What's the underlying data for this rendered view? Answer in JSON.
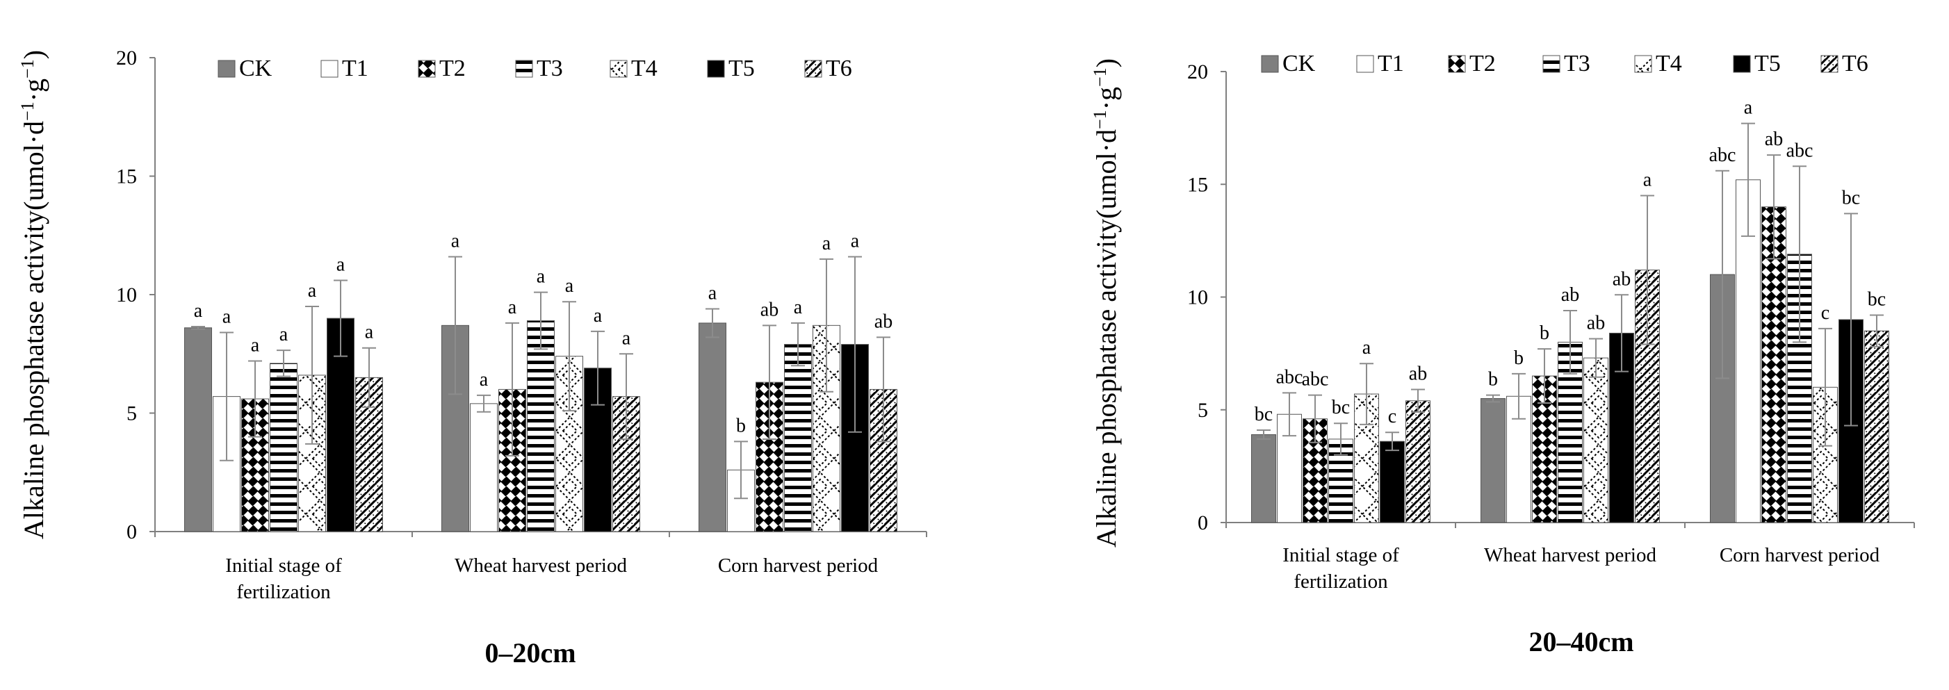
{
  "figure": {
    "series_names": [
      "CK",
      "T1",
      "T2",
      "T3",
      "T4",
      "T5",
      "T6"
    ],
    "series_styles": [
      {
        "fill": "#7f7f7f",
        "pattern": "solid"
      },
      {
        "fill": "#ffffff",
        "pattern": "none"
      },
      {
        "fill": "#ffffff",
        "pattern": "diag-checker"
      },
      {
        "fill": "#ffffff",
        "pattern": "horizontal"
      },
      {
        "fill": "#ffffff",
        "pattern": "diamond-dots"
      },
      {
        "fill": "#000000",
        "pattern": "solid"
      },
      {
        "fill": "#ffffff",
        "pattern": "diag-weave"
      }
    ]
  },
  "chart_data": [
    {
      "type": "bar",
      "title": "0–20cm",
      "ylabel": "Alkaline phosphatase activity(umol·d",
      "ylabel_sup1": "−1",
      "ylabel_mid": "·g",
      "ylabel_sup2": "−1",
      "ylabel_end": ")",
      "ylim": [
        0,
        20
      ],
      "yticks": [
        0,
        5,
        10,
        15,
        20
      ],
      "categories": [
        [
          "Initial stage of",
          "fertilization"
        ],
        [
          "Wheat harvest period"
        ],
        [
          "Corn harvest period"
        ]
      ],
      "legend": "top",
      "series": [
        {
          "name": "CK",
          "values": [
            8.6,
            8.7,
            8.8
          ],
          "errors": [
            0.05,
            2.9,
            0.6
          ],
          "letters": [
            "a",
            "a",
            "a"
          ]
        },
        {
          "name": "T1",
          "values": [
            5.7,
            5.4,
            2.6
          ],
          "errors": [
            2.7,
            0.35,
            1.2
          ],
          "letters": [
            "a",
            "a",
            "b"
          ]
        },
        {
          "name": "T2",
          "values": [
            5.6,
            6.0,
            6.3
          ],
          "errors": [
            1.6,
            2.8,
            2.4
          ],
          "letters": [
            "a",
            "a",
            "ab"
          ]
        },
        {
          "name": "T3",
          "values": [
            7.1,
            8.9,
            7.9
          ],
          "errors": [
            0.55,
            1.2,
            0.9
          ],
          "letters": [
            "a",
            "a",
            "a"
          ]
        },
        {
          "name": "T4",
          "values": [
            6.6,
            7.4,
            8.7
          ],
          "errors": [
            2.9,
            2.3,
            2.8
          ],
          "letters": [
            "a",
            "a",
            "a"
          ]
        },
        {
          "name": "T5",
          "values": [
            9.0,
            6.9,
            7.9
          ],
          "errors": [
            1.6,
            1.55,
            3.7
          ],
          "letters": [
            "a",
            "a",
            "a"
          ]
        },
        {
          "name": "T6",
          "values": [
            6.5,
            5.7,
            6.0
          ],
          "errors": [
            1.25,
            1.8,
            2.2
          ],
          "letters": [
            "a",
            "a",
            "ab"
          ]
        }
      ]
    },
    {
      "type": "bar",
      "title": "20–40cm",
      "ylabel": "Alkaline phosphatase activity(umol·d",
      "ylabel_sup1": "−1",
      "ylabel_mid": "·g",
      "ylabel_sup2": "−1",
      "ylabel_end": ")",
      "ylim": [
        0,
        20
      ],
      "yticks": [
        0,
        5,
        10,
        15,
        20
      ],
      "categories": [
        [
          "Initial stage of",
          "fertilization"
        ],
        [
          "Wheat harvest period"
        ],
        [
          "Corn harvest period"
        ]
      ],
      "legend": "top",
      "series": [
        {
          "name": "CK",
          "values": [
            3.9,
            5.5,
            11.0
          ],
          "errors": [
            0.2,
            0.15,
            4.6
          ],
          "letters": [
            "bc",
            "b",
            "abc"
          ]
        },
        {
          "name": "T1",
          "values": [
            4.8,
            5.6,
            15.2
          ],
          "errors": [
            0.95,
            1.0,
            2.5
          ],
          "letters": [
            "abc",
            "b",
            "a"
          ]
        },
        {
          "name": "T2",
          "values": [
            4.6,
            6.5,
            14.0
          ],
          "errors": [
            1.05,
            1.2,
            2.3
          ],
          "letters": [
            "abc",
            "b",
            "ab"
          ]
        },
        {
          "name": "T3",
          "values": [
            3.7,
            8.0,
            11.9
          ],
          "errors": [
            0.7,
            1.4,
            3.9
          ],
          "letters": [
            "bc",
            "ab",
            "abc"
          ]
        },
        {
          "name": "T4",
          "values": [
            5.7,
            7.3,
            6.0
          ],
          "errors": [
            1.35,
            0.85,
            2.6
          ],
          "letters": [
            "a",
            "ab",
            "c"
          ]
        },
        {
          "name": "T5",
          "values": [
            3.6,
            8.4,
            9.0
          ],
          "errors": [
            0.4,
            1.7,
            4.7
          ],
          "letters": [
            "c",
            "ab",
            "bc"
          ]
        },
        {
          "name": "T6",
          "values": [
            5.4,
            11.2,
            8.5
          ],
          "errors": [
            0.5,
            3.3,
            0.7
          ],
          "letters": [
            "ab",
            "a",
            "bc"
          ]
        }
      ]
    }
  ]
}
